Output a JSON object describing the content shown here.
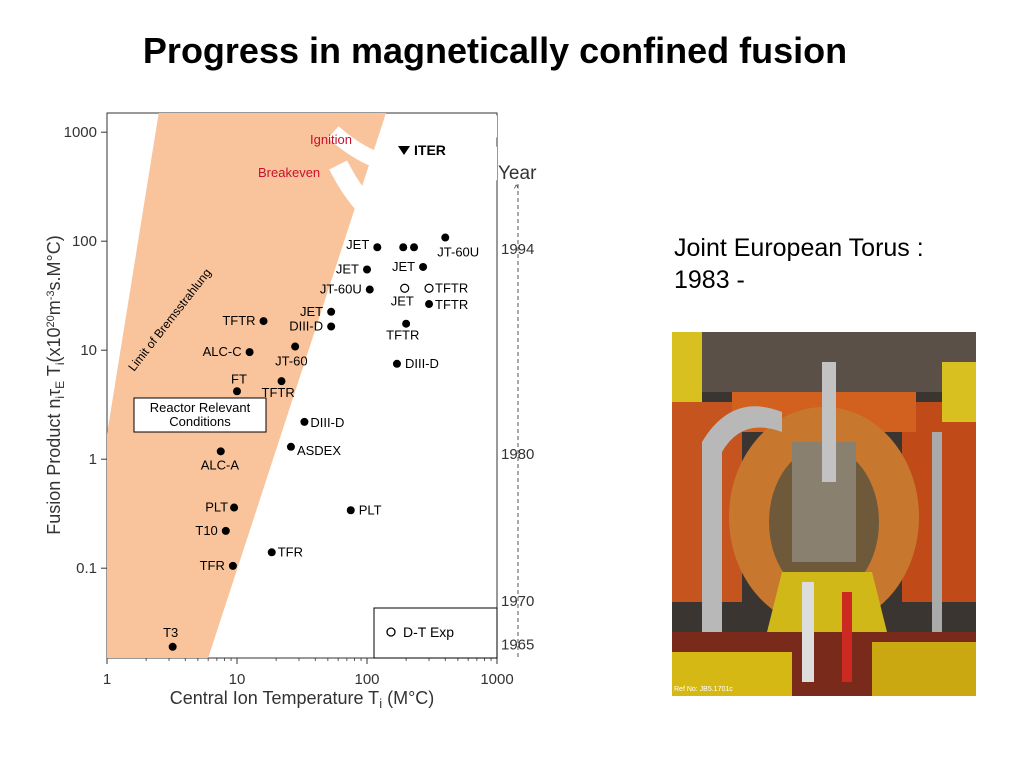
{
  "slide": {
    "title": "Progress in magnetically confined fusion",
    "side_text": [
      "Joint European Torus :",
      "1983 -"
    ],
    "photo_ref": "Ref No: JB5.1701c"
  },
  "chart_data": {
    "type": "scatter",
    "xlabel": "Central Ion Temperature T",
    "xlabel_sub": "i",
    "xlabel_unit": " (M°C)",
    "ylabel": "Fusion Product n",
    "ylabel_parts": [
      "Fusion Product n",
      "i",
      "τ",
      "E",
      " T",
      "i",
      "(x10",
      "20",
      "m",
      "-3",
      "s.M°C)"
    ],
    "x_scale": "log",
    "y_scale": "log",
    "xlim": [
      1,
      1000
    ],
    "ylim": [
      0.015,
      1500
    ],
    "x_ticks": [
      {
        "v": 1,
        "label": "1"
      },
      {
        "v": 10,
        "label": "10"
      },
      {
        "v": 100,
        "label": "100"
      },
      {
        "v": 1000,
        "label": "1000"
      }
    ],
    "y_ticks": [
      {
        "v": 0.1,
        "label": "0.1"
      },
      {
        "v": 1,
        "label": "1"
      },
      {
        "v": 10,
        "label": "10"
      },
      {
        "v": 100,
        "label": "100"
      },
      {
        "v": 1000,
        "label": "1000"
      }
    ],
    "year_axis": {
      "label": "Year",
      "ticks": [
        {
          "year": "1994",
          "y": 85
        },
        {
          "year": "1980",
          "y": 1.12
        },
        {
          "year": "1970",
          "y": 0.05
        },
        {
          "year": "1965",
          "y": 0.02
        }
      ]
    },
    "region_labels": {
      "bremsstrahlung": "Limit of Bremsstrahlung",
      "breakeven": "Breakeven",
      "ignition": "Ignition",
      "reactor": [
        "Reactor Relevant",
        "Conditions"
      ],
      "legend": "D-T Exp"
    },
    "colors": {
      "band": "#f9c49c",
      "red_text": "#c8102e",
      "points": "#000000"
    },
    "points": [
      {
        "name": "T3",
        "x": 3.2,
        "y": 0.019,
        "dt": false,
        "lx": -2,
        "ly": -10,
        "anchor": "middle"
      },
      {
        "name": "TFR",
        "x": 9.3,
        "y": 0.105,
        "dt": false,
        "lx": -8,
        "ly": 4,
        "anchor": "end"
      },
      {
        "name": "T10",
        "x": 8.2,
        "y": 0.22,
        "dt": false,
        "lx": -8,
        "ly": 4,
        "anchor": "end"
      },
      {
        "name": "PLT",
        "x": 9.5,
        "y": 0.36,
        "dt": false,
        "lx": -6,
        "ly": 4,
        "anchor": "end"
      },
      {
        "name": "ALC-A",
        "x": 7.5,
        "y": 1.18,
        "dt": false,
        "lx": -20,
        "ly": 18,
        "anchor": "start"
      },
      {
        "name": "FT",
        "x": 10,
        "y": 4.2,
        "dt": false,
        "lx": -6,
        "ly": -8,
        "anchor": "start"
      },
      {
        "name": "ALC-C",
        "x": 12.5,
        "y": 9.6,
        "dt": false,
        "lx": -8,
        "ly": 4,
        "anchor": "end"
      },
      {
        "name": "TFTR",
        "x": 16,
        "y": 18.5,
        "dt": false,
        "lx": -8,
        "ly": 4,
        "anchor": "end"
      },
      {
        "name": "TFR",
        "x": 18.5,
        "y": 0.14,
        "dt": false,
        "lx": 6,
        "ly": 4,
        "anchor": "start"
      },
      {
        "name": "TFTR",
        "x": 22,
        "y": 5.2,
        "dt": false,
        "lx": -20,
        "ly": 16,
        "anchor": "start"
      },
      {
        "name": "JT-60",
        "x": 28,
        "y": 10.8,
        "dt": false,
        "lx": -20,
        "ly": 19,
        "anchor": "start"
      },
      {
        "name": "ASDEX",
        "x": 26,
        "y": 1.3,
        "dt": false,
        "lx": 6,
        "ly": 8,
        "anchor": "start"
      },
      {
        "name": "DIII-D",
        "x": 33,
        "y": 2.2,
        "dt": false,
        "lx": 6,
        "ly": 5,
        "anchor": "start"
      },
      {
        "name": "JET",
        "x": 53,
        "y": 22.5,
        "dt": false,
        "lx": -8,
        "ly": 4,
        "anchor": "end"
      },
      {
        "name": "DIII-D",
        "x": 53,
        "y": 16.5,
        "dt": false,
        "lx": -8,
        "ly": 4,
        "anchor": "end"
      },
      {
        "name": "PLT",
        "x": 75,
        "y": 0.34,
        "dt": false,
        "lx": 8,
        "ly": 4,
        "anchor": "start"
      },
      {
        "name": "JET",
        "x": 120,
        "y": 88,
        "dt": false,
        "lx": -8,
        "ly": 2,
        "anchor": "end"
      },
      {
        "name": "JET",
        "x": 100,
        "y": 55,
        "dt": false,
        "lx": -8,
        "ly": 4,
        "anchor": "end"
      },
      {
        "name": "JT-60U",
        "x": 105,
        "y": 36,
        "dt": false,
        "lx": -8,
        "ly": 4,
        "anchor": "end"
      },
      {
        "name": "",
        "x": 190,
        "y": 88,
        "dt": false,
        "lx": 0,
        "ly": 0,
        "anchor": "start"
      },
      {
        "name": "",
        "x": 230,
        "y": 88,
        "dt": false,
        "lx": 0,
        "ly": 0,
        "anchor": "start"
      },
      {
        "name": "JT-60U",
        "x": 400,
        "y": 108,
        "dt": false,
        "lx": -8,
        "ly": 19,
        "anchor": "start"
      },
      {
        "name": "JET",
        "x": 270,
        "y": 58,
        "dt": false,
        "lx": -8,
        "ly": 4,
        "anchor": "end"
      },
      {
        "name": "JET",
        "x": 195,
        "y": 37,
        "dt": true,
        "lx": -14,
        "ly": 17,
        "anchor": "start"
      },
      {
        "name": "TFTR",
        "x": 300,
        "y": 37,
        "dt": true,
        "lx": 6,
        "ly": 4,
        "anchor": "start"
      },
      {
        "name": "TFTR",
        "x": 300,
        "y": 26.5,
        "dt": false,
        "lx": 6,
        "ly": 5,
        "anchor": "start"
      },
      {
        "name": "TFTR",
        "x": 200,
        "y": 17.5,
        "dt": false,
        "lx": -20,
        "ly": 16,
        "anchor": "start"
      },
      {
        "name": "DIII-D",
        "x": 170,
        "y": 7.5,
        "dt": false,
        "lx": 8,
        "ly": 4,
        "anchor": "start"
      },
      {
        "name": "ITER",
        "x": 0,
        "y": 0,
        "dt": false,
        "lx": 0,
        "ly": 0,
        "anchor": "start",
        "special": "iter"
      }
    ]
  }
}
